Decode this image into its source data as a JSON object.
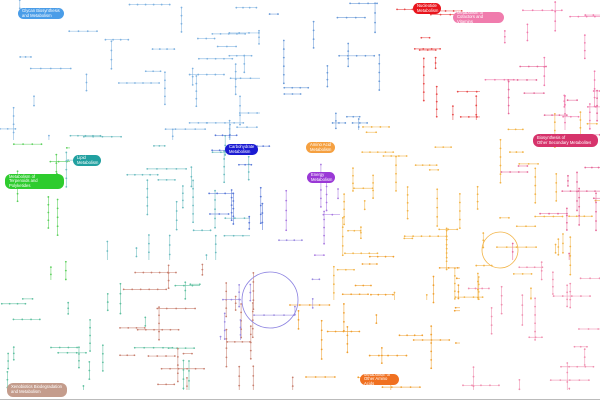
{
  "categories": [
    {
      "label": "Glycan Biosynthesis\nand Metabolism",
      "color": "#4a9de8"
    },
    {
      "label": "Nucleotide\nMetabolism",
      "color": "#e8141c"
    },
    {
      "label": "Metabolism of\nCofactors and Vitamins",
      "color": "#f07cad"
    },
    {
      "label": "Carbohydrate\nMetabolism",
      "color": "#1a1ad2"
    },
    {
      "label": "Amino Acid\nMetabolism",
      "color": "#f5a040"
    },
    {
      "label": "Energy\nMetabolism",
      "color": "#9a38d6"
    },
    {
      "label": "Biosynthesis of\nOther Secondary Metabolites",
      "color": "#d6336b"
    },
    {
      "label": "Lipid\nMetabolism",
      "color": "#21a0a0"
    },
    {
      "label": "Metabolism of\nTerpenoids and Polyketides",
      "color": "#2ecc2e"
    },
    {
      "label": "Xenobiotics Biodegradation\nand Metabolism",
      "color": "#c49c8c"
    },
    {
      "label": "Metabolism of\nOther Amino Acids",
      "color": "#f07020"
    }
  ]
}
